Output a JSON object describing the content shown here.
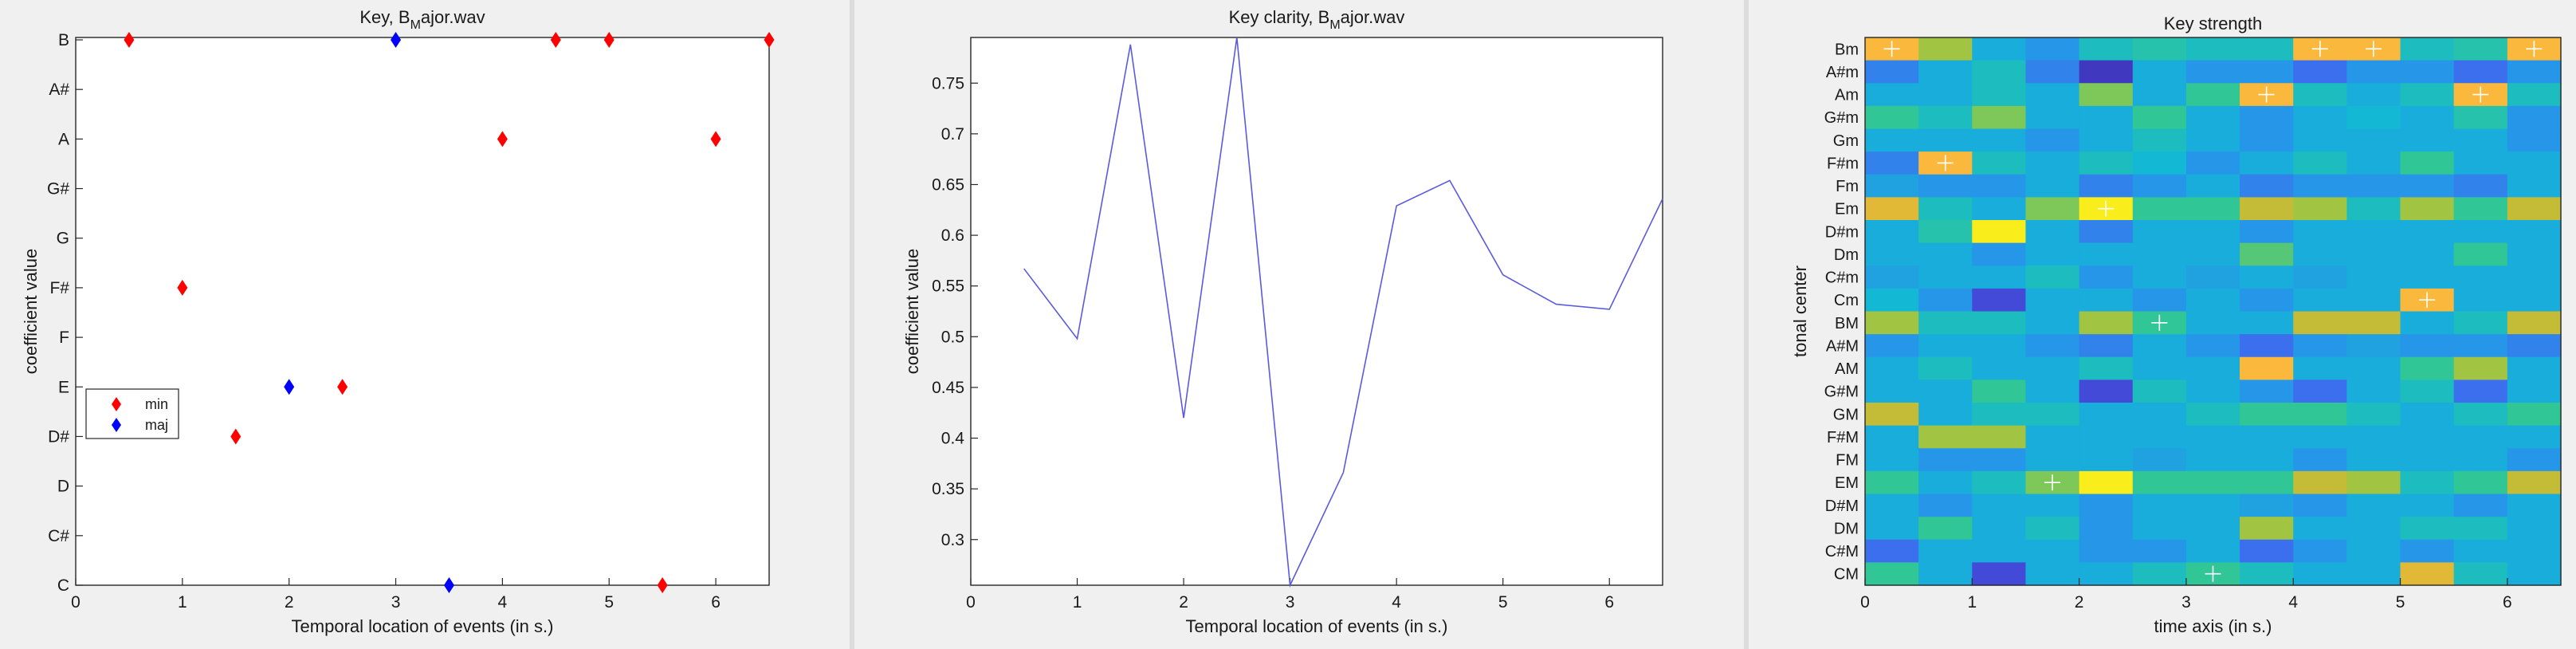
{
  "chart_data": [
    {
      "type": "scatter",
      "title_main": "Key, B",
      "title_sub": "M",
      "title_rest": "ajor.wav",
      "xlabel": "Temporal location of events (in s.)",
      "ylabel": "coefficient value",
      "xlim": [
        0,
        6.5
      ],
      "xticks": [
        "0",
        "1",
        "2",
        "3",
        "4",
        "5",
        "6"
      ],
      "yticks": [
        "C",
        "C#",
        "D",
        "D#",
        "E",
        "F",
        "F#",
        "G",
        "G#",
        "A",
        "A#",
        "B"
      ],
      "legend": {
        "placement": "center-left",
        "entries": [
          "min",
          "maj"
        ]
      },
      "series": [
        {
          "name": "min",
          "color": "#ff0000",
          "points": [
            [
              0.5,
              "B"
            ],
            [
              1,
              "F#"
            ],
            [
              1.5,
              "D#"
            ],
            [
              2.5,
              "E"
            ],
            [
              4,
              "A"
            ],
            [
              4.5,
              "B"
            ],
            [
              5,
              "B"
            ],
            [
              5.5,
              "C"
            ],
            [
              6,
              "A"
            ],
            [
              6.5,
              "B"
            ]
          ]
        },
        {
          "name": "maj",
          "color": "#0000ff",
          "points": [
            [
              2,
              "E"
            ],
            [
              3,
              "B"
            ],
            [
              3.5,
              "C"
            ]
          ]
        }
      ]
    },
    {
      "type": "line",
      "title_main": "Key clarity, B",
      "title_sub": "M",
      "title_rest": "ajor.wav",
      "xlabel": "Temporal location of events (in s.)",
      "ylabel": "coefficient value",
      "xlim": [
        0,
        6.5
      ],
      "ylim": [
        0.255,
        0.795
      ],
      "xticks": [
        "0",
        "1",
        "2",
        "3",
        "4",
        "5",
        "6"
      ],
      "yticks": [
        "0.3",
        "0.35",
        "0.4",
        "0.45",
        "0.5",
        "0.55",
        "0.6",
        "0.65",
        "0.7",
        "0.75"
      ],
      "color": "#5a5ae0",
      "x": [
        0.5,
        1,
        1.5,
        2,
        2.5,
        3,
        3.5,
        4,
        4.5,
        5,
        5.5,
        6,
        6.5
      ],
      "y": [
        0.567,
        0.498,
        0.788,
        0.42,
        0.795,
        0.255,
        0.366,
        0.629,
        0.654,
        0.561,
        0.532,
        0.527,
        0.636
      ]
    },
    {
      "type": "heatmap",
      "title": "Key strength",
      "xlabel": "time axis (in s.)",
      "ylabel": "tonal center",
      "xlim": [
        0,
        6.5
      ],
      "xticks": [
        "0",
        "1",
        "2",
        "3",
        "4",
        "5",
        "6"
      ],
      "rows": [
        "Bm",
        "A#m",
        "Am",
        "G#m",
        "Gm",
        "F#m",
        "Fm",
        "Em",
        "D#m",
        "Dm",
        "C#m",
        "Cm",
        "BM",
        "A#M",
        "AM",
        "G#M",
        "GM",
        "F#M",
        "FM",
        "EM",
        "D#M",
        "DM",
        "C#M",
        "CM"
      ],
      "values": [
        [
          0.9,
          0.75,
          0.4,
          0.3,
          0.5,
          0.55,
          0.5,
          0.5,
          0.9,
          0.9,
          0.5,
          0.55,
          0.9
        ],
        [
          0.25,
          0.4,
          0.5,
          0.25,
          0.05,
          0.4,
          0.3,
          0.3,
          0.2,
          0.3,
          0.3,
          0.2,
          0.3
        ],
        [
          0.4,
          0.4,
          0.5,
          0.4,
          0.7,
          0.4,
          0.6,
          0.9,
          0.5,
          0.4,
          0.5,
          0.9,
          0.5
        ],
        [
          0.6,
          0.5,
          0.7,
          0.4,
          0.4,
          0.6,
          0.4,
          0.3,
          0.4,
          0.45,
          0.4,
          0.55,
          0.3
        ],
        [
          0.4,
          0.4,
          0.4,
          0.3,
          0.4,
          0.5,
          0.4,
          0.3,
          0.4,
          0.4,
          0.4,
          0.4,
          0.3
        ],
        [
          0.25,
          0.9,
          0.5,
          0.4,
          0.5,
          0.45,
          0.3,
          0.4,
          0.5,
          0.4,
          0.6,
          0.4,
          0.4
        ],
        [
          0.35,
          0.3,
          0.3,
          0.4,
          0.25,
          0.3,
          0.4,
          0.25,
          0.3,
          0.3,
          0.3,
          0.25,
          0.4
        ],
        [
          0.85,
          0.5,
          0.4,
          0.7,
          0.98,
          0.6,
          0.6,
          0.8,
          0.75,
          0.5,
          0.75,
          0.6,
          0.8
        ],
        [
          0.4,
          0.55,
          0.98,
          0.4,
          0.25,
          0.4,
          0.4,
          0.3,
          0.4,
          0.4,
          0.4,
          0.4,
          0.4
        ],
        [
          0.4,
          0.4,
          0.3,
          0.4,
          0.4,
          0.4,
          0.4,
          0.65,
          0.4,
          0.4,
          0.4,
          0.6,
          0.4
        ],
        [
          0.35,
          0.4,
          0.4,
          0.5,
          0.3,
          0.4,
          0.35,
          0.4,
          0.35,
          0.4,
          0.4,
          0.4,
          0.4
        ],
        [
          0.45,
          0.3,
          0.1,
          0.4,
          0.4,
          0.3,
          0.4,
          0.3,
          0.4,
          0.4,
          0.9,
          0.4,
          0.4
        ],
        [
          0.75,
          0.5,
          0.5,
          0.4,
          0.75,
          0.6,
          0.4,
          0.4,
          0.8,
          0.8,
          0.4,
          0.5,
          0.8
        ],
        [
          0.3,
          0.4,
          0.4,
          0.3,
          0.25,
          0.4,
          0.3,
          0.2,
          0.3,
          0.35,
          0.3,
          0.3,
          0.25
        ],
        [
          0.4,
          0.5,
          0.4,
          0.4,
          0.5,
          0.4,
          0.4,
          0.9,
          0.4,
          0.4,
          0.6,
          0.75,
          0.4
        ],
        [
          0.4,
          0.4,
          0.6,
          0.4,
          0.1,
          0.5,
          0.4,
          0.3,
          0.2,
          0.4,
          0.5,
          0.2,
          0.4
        ],
        [
          0.8,
          0.4,
          0.5,
          0.5,
          0.4,
          0.4,
          0.5,
          0.6,
          0.6,
          0.5,
          0.4,
          0.5,
          0.6
        ],
        [
          0.4,
          0.75,
          0.75,
          0.4,
          0.4,
          0.4,
          0.4,
          0.4,
          0.4,
          0.4,
          0.4,
          0.4,
          0.4
        ],
        [
          0.4,
          0.3,
          0.3,
          0.4,
          0.4,
          0.35,
          0.4,
          0.4,
          0.3,
          0.4,
          0.4,
          0.4,
          0.3
        ],
        [
          0.6,
          0.4,
          0.5,
          0.7,
          0.98,
          0.6,
          0.6,
          0.6,
          0.8,
          0.75,
          0.5,
          0.6,
          0.8
        ],
        [
          0.4,
          0.3,
          0.4,
          0.4,
          0.3,
          0.4,
          0.4,
          0.35,
          0.3,
          0.4,
          0.4,
          0.3,
          0.4
        ],
        [
          0.4,
          0.6,
          0.4,
          0.5,
          0.3,
          0.4,
          0.4,
          0.75,
          0.4,
          0.4,
          0.5,
          0.5,
          0.4
        ],
        [
          0.2,
          0.4,
          0.4,
          0.4,
          0.3,
          0.3,
          0.4,
          0.2,
          0.3,
          0.4,
          0.3,
          0.4,
          0.4
        ],
        [
          0.6,
          0.4,
          0.1,
          0.4,
          0.4,
          0.5,
          0.6,
          0.5,
          0.4,
          0.4,
          0.85,
          0.5,
          0.4
        ]
      ],
      "markers": [
        [
          0,
          0
        ],
        [
          0,
          8
        ],
        [
          0,
          9
        ],
        [
          0,
          12
        ],
        [
          2,
          7
        ],
        [
          2,
          11
        ],
        [
          5,
          1
        ],
        [
          7,
          4
        ],
        [
          11,
          10
        ],
        [
          12,
          5
        ],
        [
          19,
          3
        ],
        [
          23,
          6
        ]
      ],
      "marker_color": "#ffffff"
    }
  ]
}
